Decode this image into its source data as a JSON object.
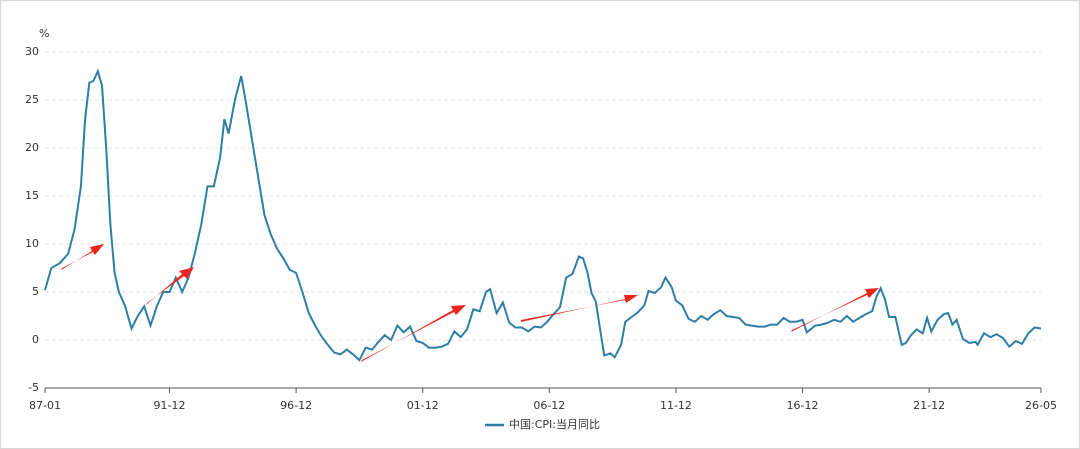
{
  "chart_data": {
    "type": "line",
    "y_label": "%",
    "x": [
      "87-01",
      "87-04",
      "87-08",
      "87-12",
      "88-03",
      "88-06",
      "88-08",
      "88-10",
      "88-12",
      "89-02",
      "89-04",
      "89-06",
      "89-08",
      "89-10",
      "89-12",
      "90-03",
      "90-06",
      "90-09",
      "90-12",
      "91-03",
      "91-06",
      "91-09",
      "91-12",
      "92-03",
      "92-06",
      "92-09",
      "92-12",
      "93-03",
      "93-06",
      "93-09",
      "93-12",
      "94-02",
      "94-04",
      "94-07",
      "94-10",
      "94-12",
      "95-03",
      "95-06",
      "95-09",
      "95-12",
      "96-03",
      "96-06",
      "96-09",
      "96-12",
      "97-03",
      "97-06",
      "97-09",
      "97-12",
      "98-03",
      "98-06",
      "98-09",
      "98-12",
      "99-03",
      "99-06",
      "99-09",
      "99-12",
      "00-03",
      "00-06",
      "00-09",
      "00-12",
      "01-03",
      "01-06",
      "01-09",
      "01-12",
      "02-03",
      "02-06",
      "02-09",
      "02-12",
      "03-03",
      "03-06",
      "03-09",
      "03-12",
      "04-03",
      "04-06",
      "04-08",
      "04-11",
      "05-02",
      "05-05",
      "05-08",
      "05-11",
      "06-02",
      "06-05",
      "06-08",
      "06-11",
      "07-02",
      "07-05",
      "07-08",
      "07-11",
      "08-02",
      "08-04",
      "08-06",
      "08-08",
      "08-10",
      "08-12",
      "09-02",
      "09-05",
      "09-07",
      "09-10",
      "09-12",
      "10-03",
      "10-06",
      "10-09",
      "10-11",
      "11-02",
      "11-05",
      "11-07",
      "11-10",
      "11-12",
      "12-03",
      "12-06",
      "12-09",
      "12-12",
      "13-03",
      "13-06",
      "13-09",
      "13-12",
      "14-03",
      "14-06",
      "14-09",
      "14-12",
      "15-03",
      "15-06",
      "15-09",
      "15-12",
      "16-03",
      "16-06",
      "16-09",
      "16-12",
      "17-02",
      "17-06",
      "17-09",
      "17-12",
      "18-03",
      "18-06",
      "18-09",
      "18-12",
      "19-03",
      "19-06",
      "19-09",
      "19-11",
      "20-01",
      "20-03",
      "20-05",
      "20-08",
      "20-11",
      "21-01",
      "21-03",
      "21-06",
      "21-09",
      "21-11",
      "22-01",
      "22-04",
      "22-07",
      "22-09",
      "22-11",
      "23-01",
      "23-04",
      "23-07",
      "23-10",
      "23-11",
      "24-02",
      "24-05",
      "24-08",
      "24-11",
      "25-02",
      "25-05",
      "25-08",
      "25-11",
      "26-02",
      "26-05"
    ],
    "series": [
      {
        "name": "中国:CPI:当月同比",
        "color": "#2e7ea6",
        "values": [
          5.2,
          7.5,
          8.0,
          9.0,
          11.5,
          16.0,
          23.0,
          26.8,
          27.0,
          28.0,
          26.5,
          20,
          12,
          7,
          5,
          3.5,
          1.2,
          2.5,
          3.5,
          1.5,
          3.5,
          5,
          5,
          6.5,
          5,
          6.5,
          9,
          12,
          16,
          16,
          19,
          23,
          21.5,
          25,
          27.5,
          25,
          21,
          17,
          13,
          11,
          9.5,
          8.5,
          7.3,
          7,
          5,
          2.8,
          1.5,
          0.4,
          -0.5,
          -1.3,
          -1.5,
          -1.0,
          -1.5,
          -2.1,
          -0.8,
          -1.0,
          -0.2,
          0.5,
          0,
          1.5,
          0.8,
          1.4,
          -0.1,
          -0.3,
          -0.8,
          -0.8,
          -0.7,
          -0.4,
          0.9,
          0.3,
          1.1,
          3.2,
          3,
          5,
          5.3,
          2.8,
          3.9,
          1.8,
          1.3,
          1.3,
          0.9,
          1.4,
          1.3,
          1.9,
          2.7,
          3.4,
          6.5,
          6.9,
          8.7,
          8.5,
          7.1,
          4.9,
          4,
          1.2,
          -1.6,
          -1.4,
          -1.8,
          -0.5,
          1.9,
          2.4,
          2.9,
          3.6,
          5.1,
          4.9,
          5.5,
          6.5,
          5.5,
          4.1,
          3.6,
          2.2,
          1.9,
          2.5,
          2.1,
          2.7,
          3.1,
          2.5,
          2.4,
          2.3,
          1.6,
          1.5,
          1.4,
          1.4,
          1.6,
          1.6,
          2.3,
          1.9,
          1.9,
          2.1,
          0.8,
          1.5,
          1.6,
          1.8,
          2.1,
          1.9,
          2.5,
          1.9,
          2.3,
          2.7,
          3.0,
          4.5,
          5.4,
          4.3,
          2.4,
          2.4,
          -0.5,
          -0.3,
          0.4,
          1.1,
          0.7,
          2.3,
          0.9,
          2.1,
          2.7,
          2.8,
          1.6,
          2.1,
          0.1,
          -0.3,
          -0.2,
          -0.5,
          0.7,
          0.3,
          0.6,
          0.2,
          -0.7,
          -0.1,
          -0.4,
          0.7,
          1.3,
          1.2
        ]
      }
    ],
    "xticks": [
      "87-01",
      "91-12",
      "96-12",
      "01-12",
      "06-12",
      "11-12",
      "16-12",
      "21-12",
      "26-05"
    ],
    "ylim": [
      -5,
      30
    ],
    "yticks": [
      -5,
      0,
      5,
      10,
      15,
      20,
      25,
      30
    ],
    "grid": true
  }
}
